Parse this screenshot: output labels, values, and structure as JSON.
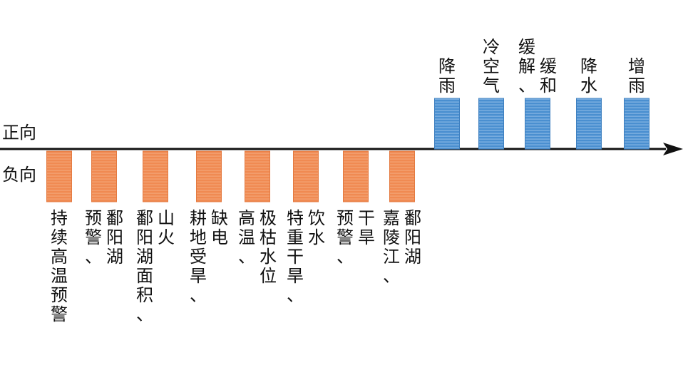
{
  "chart_data": {
    "type": "bar",
    "axis_labels": {
      "positive": "正向",
      "negative": "负向"
    },
    "colors": {
      "positive": "#4a8fd0",
      "negative": "#f08a52",
      "axis": "#111111"
    },
    "categories": [
      "持续高温预警",
      "预警、鄱阳湖",
      "鄱阳湖面积、山火",
      "耕地受旱、缺电",
      "高温、极枯水位",
      "特重干旱、饮水",
      "预警、干旱",
      "嘉陵江、鄱阳湖",
      "降雨",
      "冷空气",
      "缓解、缓和",
      "降水",
      "增雨"
    ],
    "values": [
      -1,
      -1,
      -1,
      -1,
      -1,
      -1,
      -1,
      -1,
      1,
      1,
      1,
      1,
      1
    ]
  }
}
